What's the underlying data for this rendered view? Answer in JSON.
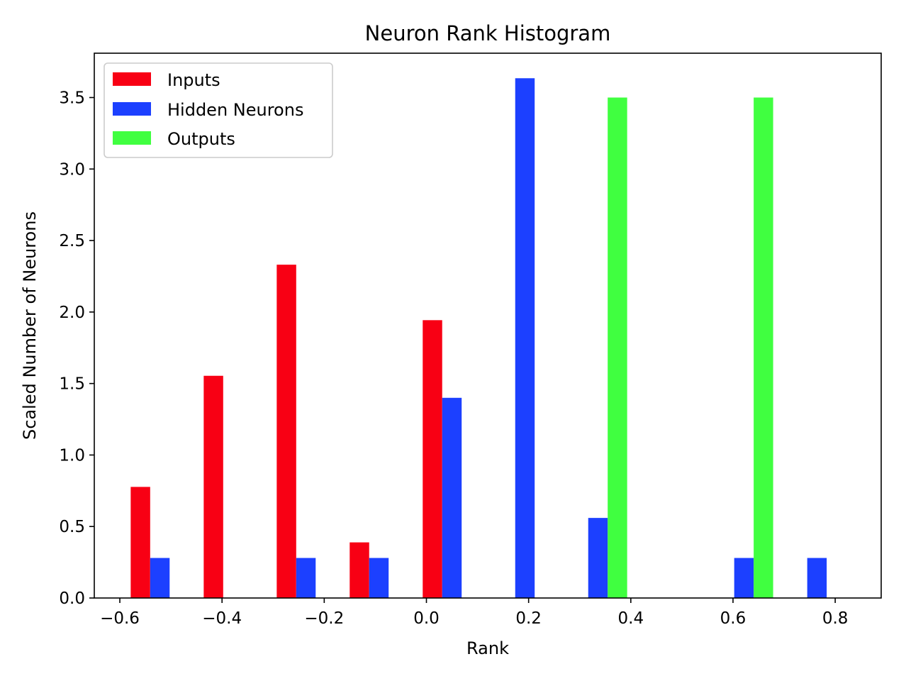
{
  "chart_data": {
    "type": "bar",
    "title": "Neuron Rank Histogram",
    "xlabel": "Rank",
    "ylabel": "Scaled Number of Neurons",
    "xlim": [
      -0.65,
      0.89
    ],
    "ylim": [
      0,
      3.81
    ],
    "xticks": [
      -0.6,
      -0.4,
      -0.2,
      0.0,
      0.2,
      0.4,
      0.6,
      0.8
    ],
    "xtick_labels": [
      "−0.6",
      "−0.4",
      "−0.2",
      "0.0",
      "0.2",
      "0.4",
      "0.6",
      "0.8"
    ],
    "yticks": [
      0.0,
      0.5,
      1.0,
      1.5,
      2.0,
      2.5,
      3.0,
      3.5
    ],
    "ytick_labels": [
      "0.0",
      "0.5",
      "1.0",
      "1.5",
      "2.0",
      "2.5",
      "3.0",
      "3.5"
    ],
    "bar_width": 0.0381,
    "legend_position": "top-left",
    "grid": false,
    "series": [
      {
        "name": "Inputs",
        "color": "#f80014",
        "x": [
          -0.5597,
          -0.4168,
          -0.2739,
          -0.1311,
          0.0118
        ],
        "values": [
          0.777,
          1.554,
          2.331,
          0.389,
          1.943
        ]
      },
      {
        "name": "Hidden Neurons",
        "color": "#1c40ff",
        "x": [
          -0.5216,
          -0.2358,
          -0.093,
          0.0499,
          0.1928,
          0.3357,
          0.6214,
          0.7643
        ],
        "values": [
          0.28,
          0.28,
          0.28,
          1.4,
          3.635,
          0.56,
          0.28,
          0.28
        ]
      },
      {
        "name": "Outputs",
        "color": "#40ff40",
        "x": [
          0.3738,
          0.6595
        ],
        "values": [
          3.5,
          3.5
        ]
      }
    ]
  }
}
